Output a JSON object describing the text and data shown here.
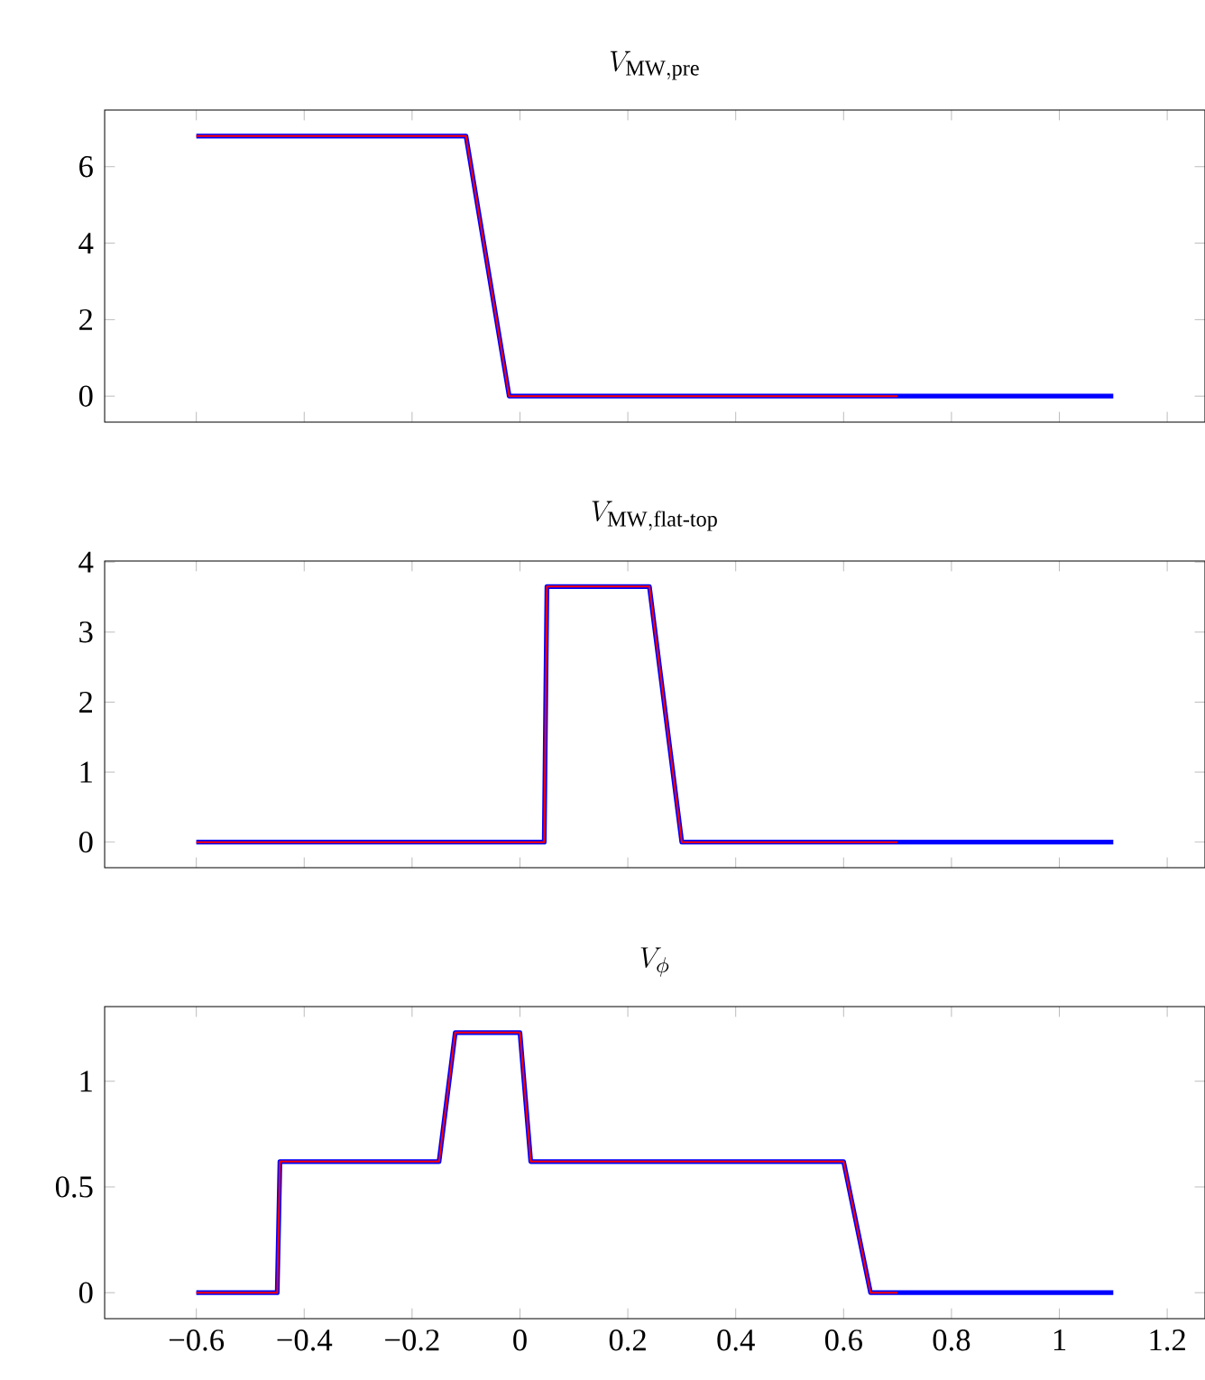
{
  "chart_data": [
    {
      "type": "line",
      "title": "V_{\\mathrm{MW,pre}}",
      "tick_labels": "y",
      "xlim": [
        -0.77,
        1.27
      ],
      "ylim": [
        -0.68,
        7.48
      ],
      "xticks": [
        -0.6,
        -0.4,
        -0.2,
        0,
        0.2,
        0.4,
        0.6,
        0.8,
        1,
        1.2
      ],
      "yticks": [
        0,
        2,
        4,
        6
      ],
      "series": [
        {
          "color": "#0000ff",
          "x": [
            -0.6,
            -0.1,
            -0.02,
            1.1
          ],
          "values": [
            6.8,
            6.8,
            0,
            0
          ]
        },
        {
          "color": "#ff0000",
          "x": [
            -0.6,
            -0.1,
            -0.02,
            0.7
          ],
          "values": [
            6.8,
            6.8,
            0,
            0
          ]
        }
      ]
    },
    {
      "type": "line",
      "title": "V_{\\mathrm{MW,flat\\text{-}top}}",
      "tick_labels": "y",
      "xlim": [
        -0.77,
        1.27
      ],
      "ylim": [
        -0.365,
        4.015
      ],
      "xticks": [
        -0.6,
        -0.4,
        -0.2,
        0,
        0.2,
        0.4,
        0.6,
        0.8,
        1,
        1.2
      ],
      "yticks": [
        0,
        1,
        2,
        3,
        4
      ],
      "series": [
        {
          "color": "#0000ff",
          "x": [
            -0.6,
            0.045,
            0.05,
            0.24,
            0.3,
            1.1
          ],
          "values": [
            0,
            0,
            3.65,
            3.65,
            0,
            0
          ]
        },
        {
          "color": "#ff0000",
          "x": [
            -0.6,
            0.045,
            0.05,
            0.24,
            0.3,
            0.7
          ],
          "values": [
            0,
            0,
            3.65,
            3.65,
            0,
            0
          ]
        }
      ]
    },
    {
      "type": "line",
      "title": "V_{\\phi}",
      "xlim": [
        -0.77,
        1.27
      ],
      "ylim": [
        -0.123,
        1.353
      ],
      "xticks": [
        {
          "value": -0.6,
          "label": "−0.6"
        },
        {
          "value": -0.4,
          "label": "−0.4"
        },
        {
          "value": -0.2,
          "label": "−0.2"
        },
        0,
        0.2,
        0.4,
        0.6,
        0.8,
        1,
        1.2
      ],
      "yticks": [
        0,
        0.5,
        1
      ],
      "series": [
        {
          "color": "#0000ff",
          "x": [
            -0.6,
            -0.45,
            -0.445,
            -0.15,
            -0.12,
            0,
            0.02,
            0.6,
            0.65,
            1.1
          ],
          "values": [
            0,
            0,
            0.62,
            0.62,
            1.23,
            1.23,
            0.62,
            0.62,
            0,
            0
          ]
        },
        {
          "color": "#ff0000",
          "x": [
            -0.6,
            -0.45,
            -0.445,
            -0.15,
            -0.12,
            0,
            0.02,
            0.6,
            0.65,
            0.7
          ],
          "values": [
            0,
            0,
            0.62,
            0.62,
            1.23,
            1.23,
            0.62,
            0.62,
            0,
            0
          ]
        }
      ]
    }
  ]
}
